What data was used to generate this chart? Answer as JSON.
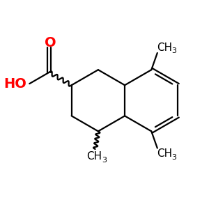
{
  "background": "#ffffff",
  "bond_color": "#000000",
  "bond_width": 1.6,
  "o_color": "#ff0000",
  "ho_color": "#ff0000",
  "text_color": "#000000",
  "figsize": [
    3.0,
    3.0
  ],
  "dpi": 100,
  "xlim": [
    0,
    10
  ],
  "ylim": [
    0,
    10
  ],
  "font_size_label": 11,
  "font_size_sub": 8
}
